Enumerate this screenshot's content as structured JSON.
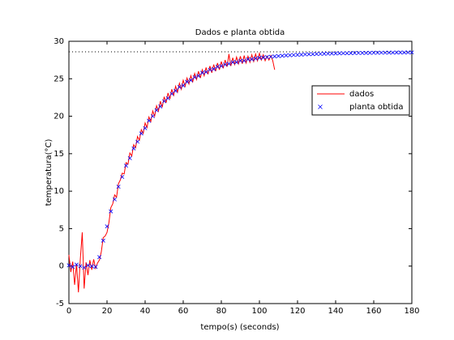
{
  "chart_data": {
    "type": "line",
    "title": "Dados e planta obtida",
    "xlabel": "tempo(s) (seconds)",
    "ylabel": "temperatura(°C)",
    "xlim": [
      0,
      180
    ],
    "ylim": [
      -5,
      30
    ],
    "xticks": [
      0,
      20,
      40,
      60,
      80,
      100,
      120,
      140,
      160,
      180
    ],
    "yticks": [
      -5,
      0,
      5,
      10,
      15,
      20,
      25,
      30
    ],
    "hline": 28.6,
    "hline_color": "#000000",
    "legend": "upper right",
    "series": [
      {
        "name": "dados",
        "color": "#ff0000",
        "marker": "none",
        "x": [
          0,
          1,
          2,
          3,
          4,
          5,
          6,
          7,
          8,
          9,
          10,
          11,
          12,
          13,
          14,
          15,
          16,
          17,
          18,
          19,
          20,
          21,
          22,
          23,
          24,
          25,
          26,
          27,
          28,
          29,
          30,
          31,
          32,
          33,
          34,
          35,
          36,
          37,
          38,
          39,
          40,
          41,
          42,
          43,
          44,
          45,
          46,
          47,
          48,
          49,
          50,
          51,
          52,
          53,
          54,
          55,
          56,
          57,
          58,
          59,
          60,
          61,
          62,
          63,
          64,
          65,
          66,
          67,
          68,
          69,
          70,
          71,
          72,
          73,
          74,
          75,
          76,
          77,
          78,
          79,
          80,
          81,
          82,
          83,
          84,
          85,
          86,
          87,
          88,
          89,
          90,
          91,
          92,
          93,
          94,
          95,
          96,
          97,
          98,
          99,
          100,
          101,
          102,
          103,
          104,
          105,
          106,
          107,
          108
        ],
        "values": [
          1.5,
          -0.8,
          0.6,
          -2.5,
          0.3,
          -3.5,
          1.0,
          4.5,
          -3.0,
          0.5,
          -1.2,
          0.8,
          -0.5,
          0.9,
          -0.3,
          0.4,
          0.8,
          1.9,
          3.8,
          4.0,
          4.5,
          5.8,
          7.8,
          8.3,
          9.5,
          9.2,
          11.0,
          11.5,
          12.4,
          12.3,
          13.8,
          13.6,
          15.1,
          14.7,
          16.2,
          15.8,
          17.3,
          16.8,
          18.2,
          17.7,
          19.1,
          18.5,
          19.9,
          19.3,
          20.7,
          20.0,
          21.4,
          20.7,
          22.0,
          21.2,
          22.6,
          21.8,
          23.1,
          22.3,
          23.6,
          22.8,
          24.0,
          23.2,
          24.4,
          23.6,
          24.8,
          24.0,
          25.1,
          24.3,
          25.4,
          24.6,
          25.7,
          24.9,
          26.0,
          25.1,
          26.2,
          25.4,
          26.5,
          25.6,
          26.7,
          25.8,
          26.9,
          26.0,
          27.1,
          26.2,
          27.3,
          26.4,
          27.5,
          26.6,
          28.3,
          26.7,
          27.8,
          26.9,
          27.9,
          27.0,
          28.0,
          27.0,
          28.1,
          27.1,
          28.0,
          27.2,
          28.2,
          27.3,
          28.3,
          27.4,
          28.4,
          27.5,
          28.2,
          27.4,
          28.0,
          27.5,
          28.1,
          27.4,
          26.2
        ]
      },
      {
        "name": "planta obtida",
        "color": "#0000ff",
        "marker": "x",
        "x": [
          0,
          2,
          4,
          6,
          8,
          10,
          12,
          14,
          16,
          18,
          20,
          22,
          24,
          26,
          28,
          30,
          32,
          34,
          36,
          38,
          40,
          42,
          44,
          46,
          48,
          50,
          52,
          54,
          56,
          58,
          60,
          62,
          64,
          66,
          68,
          70,
          72,
          74,
          76,
          78,
          80,
          82,
          84,
          86,
          88,
          90,
          92,
          94,
          96,
          98,
          100,
          102,
          104,
          106,
          108,
          110,
          112,
          114,
          116,
          118,
          120,
          122,
          124,
          126,
          128,
          130,
          132,
          134,
          136,
          138,
          140,
          142,
          144,
          146,
          148,
          150,
          152,
          154,
          156,
          158,
          160,
          162,
          164,
          166,
          168,
          170,
          172,
          174,
          176,
          178,
          180
        ],
        "values": [
          0.1,
          -0.1,
          0.2,
          0,
          -0.2,
          0.1,
          0,
          -0.1,
          1.2,
          3.4,
          5.3,
          7.3,
          8.9,
          10.6,
          11.9,
          13.4,
          14.4,
          15.7,
          16.6,
          17.7,
          18.4,
          19.4,
          20.0,
          20.8,
          21.3,
          22.0,
          22.4,
          23.0,
          23.4,
          23.9,
          24.1,
          24.6,
          24.8,
          25.2,
          25.4,
          25.8,
          25.9,
          26.2,
          26.3,
          26.6,
          26.7,
          26.9,
          27.0,
          27.2,
          27.2,
          27.4,
          27.4,
          27.6,
          27.6,
          27.7,
          27.8,
          27.83,
          27.89,
          27.94,
          27.99,
          28.03,
          28.07,
          28.11,
          28.14,
          28.17,
          28.2,
          28.22,
          28.25,
          28.27,
          28.29,
          28.31,
          28.32,
          28.34,
          28.35,
          28.37,
          28.38,
          28.39,
          28.4,
          28.41,
          28.42,
          28.43,
          28.44,
          28.45,
          28.45,
          28.46,
          28.47,
          28.47,
          28.48,
          28.48,
          28.49,
          28.49,
          28.5,
          28.5,
          28.5,
          28.51,
          28.51
        ]
      }
    ]
  }
}
